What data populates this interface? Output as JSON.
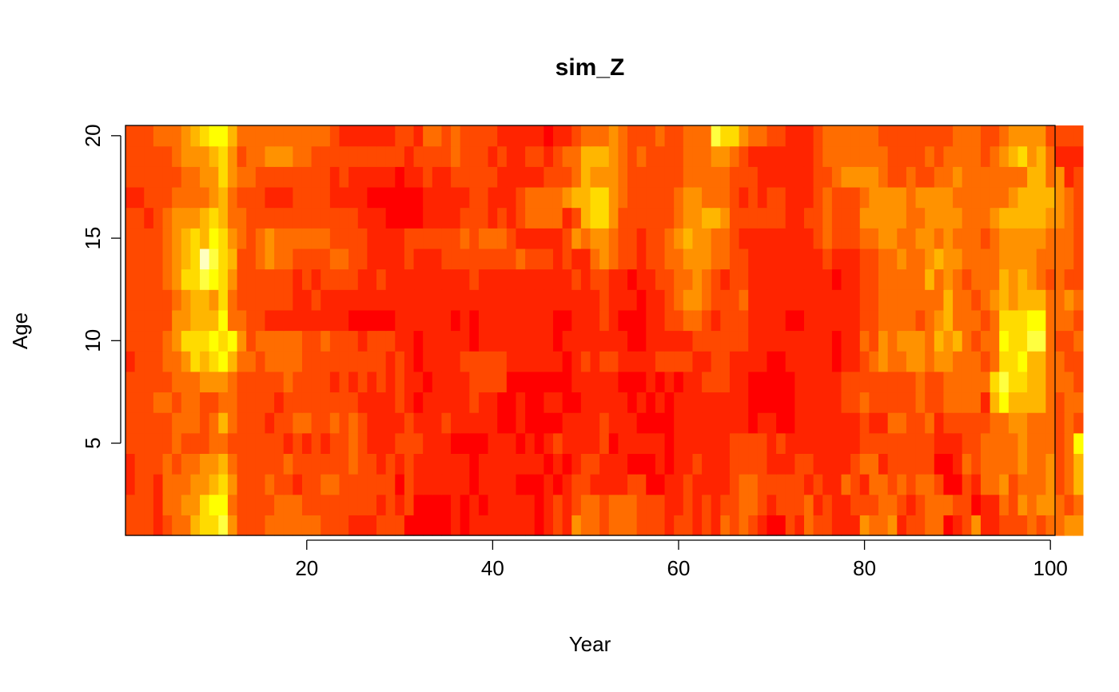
{
  "chart_data": {
    "type": "heatmap",
    "title": "sim_Z",
    "xlabel": "Year",
    "ylabel": "Age",
    "x_ticks": [
      20,
      40,
      60,
      80,
      100
    ],
    "y_ticks": [
      5,
      10,
      15,
      20
    ],
    "x_range": [
      1,
      100
    ],
    "y_range": [
      1,
      20
    ],
    "color_scale": "heat.colors",
    "palette": [
      "#ff0000",
      "#ff2400",
      "#ff4900",
      "#ff6d00",
      "#ff9200",
      "#ffb600",
      "#ffdb00",
      "#ffff00",
      "#ffff40",
      "#ffffbf"
    ],
    "level_range": [
      0,
      9
    ],
    "grid": false,
    "legend": "none",
    "z_note": "Values are relative color levels 0 (red, low) to 9 (pale yellow, high); no colorbar is shown.",
    "rows_by_age": [
      "2221233566842223333332221112220000010111111101214332333222122121323210021322111433412233012411222323344",
      "2221334467732222333222222221212000010101111101212332333222112121223321222312112223321233322011324344323",
      "1221333445642223221223322222202111111011110001012211112200112111123322222121132133232332002133423334235",
      "1222323344532222232222223221212111111011111110101221110001011211122221112211112331222220013233334334235",
      "2222232223322222212121223211122211100001110101211112011111011111122221211111111222222221112233334333237",
      "2222233323532221223322323211112111211111001000011112111000011111111011001111111211332231222223344333232",
      "2223323322332222122222222111121011111211001001100111110101011111111000001111122322222322333315755553233",
      "2222233344432222232222121212121101111222200000001111100010101122211000001111122222222322333336866553332",
      "1222334656753323333222222222121011112222211111101212211112222112211110011111011234334434433323667553322",
      "2222346667674233333223222122211011111011111111011111110011111222222111111111011324344435453233766883223",
      "2222244555733221111111110000011111101011111111001112100011223321222111100111111223333234533323666773332",
      "2222234554632222221121111111111111111111111111111112111011234432223111111111111223333333533234545553343",
      "2222346687642222221212222112111111111211111111112122110112233432122111111111011223333353432333545432322",
      "2222345698652234332222332211112111222222223222121134322122334443322111111112111223343345443333444433332",
      "2222345657643234333333222211112222223233321111124344322122345443321111111123222334433443433323444443332",
      "2212344456533222222222222111000011112221212333312566422222234455422222211223222444443344443334555554432",
      "1122233334532221112222111100000011111221112333345566432222234433321212211123222344443444433333345555432",
      "2222223344643322222222121111101121122222111112223544432222223333322211111122344443223223343333333553412",
      "2222234445642334443322222222221222232221211221233555432322223334432111111123333333222232333323456453111",
      "2223334567753333333333211111122133232222111110112333432223223338664332211123333332222222233322344442222"
    ]
  }
}
